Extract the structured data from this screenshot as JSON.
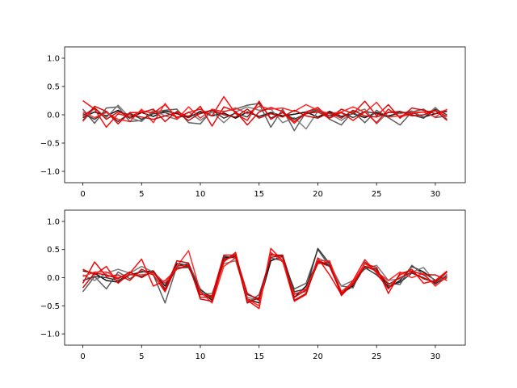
{
  "chart_data": [
    {
      "type": "line",
      "title": "",
      "xlabel": "",
      "ylabel": "",
      "xlim": [
        -1.55,
        32.55
      ],
      "ylim": [
        -1.2,
        1.2
      ],
      "xticks": [
        0,
        5,
        10,
        15,
        20,
        25,
        30
      ],
      "yticks": [
        -1.0,
        -0.5,
        0.0,
        0.5,
        1.0
      ],
      "xtick_labels": [
        "0",
        "5",
        "10",
        "15",
        "20",
        "25",
        "30"
      ],
      "ytick_labels": [
        "−1.0",
        "−0.5",
        "0.0",
        "0.5",
        "1.0"
      ],
      "grid": false,
      "legend": "none",
      "x": [
        0,
        1,
        2,
        3,
        4,
        5,
        6,
        7,
        8,
        9,
        10,
        11,
        12,
        13,
        14,
        15,
        16,
        17,
        18,
        19,
        20,
        21,
        22,
        23,
        24,
        25,
        26,
        27,
        28,
        29,
        30,
        31
      ],
      "series": [
        {
          "color": "#000000",
          "values": [
            -0.05,
            0.05,
            -0.02,
            0.08,
            -0.06,
            0.04,
            -0.03,
            0.07,
            0.02,
            -0.05,
            0.06,
            -0.02,
            0.03,
            -0.06,
            0.05,
            -0.03,
            0.04,
            -0.02,
            0.01,
            0.05,
            -0.04,
            0.06,
            -0.03,
            0.02,
            -0.05,
            0.04,
            -0.02,
            0.03,
            0.05,
            -0.04,
            0.02,
            0.06
          ]
        },
        {
          "color": "#555555",
          "values": [
            0.1,
            -0.15,
            0.12,
            0.14,
            -0.12,
            -0.1,
            0.05,
            0.08,
            0.1,
            -0.14,
            -0.16,
            0.08,
            0.06,
            0.1,
            0.17,
            0.2,
            -0.22,
            0.1,
            -0.28,
            0.05,
            0.1,
            -0.08,
            -0.18,
            0.06,
            -0.14,
            0.08,
            -0.05,
            -0.18,
            0.05,
            0.1,
            -0.05,
            -0.02
          ]
        },
        {
          "color": "#777777",
          "values": [
            -0.12,
            0.12,
            -0.05,
            0.17,
            -0.05,
            -0.12,
            0.08,
            -0.02,
            -0.08,
            0.05,
            -0.1,
            0.05,
            -0.14,
            0.05,
            0.14,
            0.08,
            0.1,
            -0.14,
            -0.05,
            -0.25,
            0.06,
            0.02,
            -0.1,
            0.04,
            0.1,
            -0.16,
            0.05,
            0.02,
            0.07,
            -0.05,
            0.13,
            -0.08
          ]
        },
        {
          "color": "#333333",
          "values": [
            0.02,
            -0.08,
            0.06,
            -0.12,
            0.03,
            -0.08,
            0.02,
            0.04,
            -0.04,
            -0.02,
            0.02,
            0.08,
            -0.06,
            0.03,
            -0.04,
            0.22,
            -0.06,
            0.04,
            -0.08,
            0.02,
            0.08,
            -0.02,
            0.04,
            -0.05,
            0.06,
            0.02,
            -0.04,
            0.06,
            0.0,
            -0.06,
            0.1,
            0.0
          ]
        },
        {
          "color": "#ff0000",
          "values": [
            0.25,
            0.1,
            -0.22,
            0.02,
            -0.04,
            0.07,
            0.03,
            0.18,
            -0.05,
            0.04,
            0.1,
            -0.02,
            0.32,
            0.02,
            -0.1,
            0.24,
            -0.08,
            0.04,
            -0.15,
            0.05,
            0.13,
            -0.06,
            0.04,
            -0.1,
            0.05,
            -0.14,
            0.1,
            -0.04,
            0.02,
            0.05,
            0.07,
            -0.03
          ]
        },
        {
          "color": "#e00000",
          "values": [
            -0.1,
            0.15,
            0.06,
            -0.16,
            0.04,
            0.04,
            0.1,
            -0.12,
            0.06,
            -0.04,
            0.15,
            -0.2,
            0.14,
            0.06,
            -0.18,
            0.05,
            0.13,
            0.06,
            -0.12,
            0.02,
            0.05,
            -0.06,
            0.1,
            0.02,
            0.24,
            -0.02,
            0.18,
            -0.06,
            0.12,
            0.08,
            0.02,
            0.09
          ]
        },
        {
          "color": "#ff2020",
          "values": [
            0.05,
            -0.05,
            0.04,
            -0.08,
            -0.12,
            0.1,
            -0.14,
            0.2,
            -0.08,
            0.14,
            -0.06,
            0.1,
            0.05,
            0.12,
            0.02,
            0.15,
            0.1,
            0.12,
            0.06,
            0.18,
            0.08,
            0.02,
            0.05,
            0.14,
            0.04,
            0.22,
            -0.04,
            -0.02,
            0.04,
            0.05,
            -0.04,
            0.1
          ]
        },
        {
          "color": "#cc0000",
          "values": [
            -0.02,
            0.12,
            -0.08,
            0.05,
            0.0,
            -0.04,
            -0.08,
            -0.02,
            0.04,
            -0.1,
            0.03,
            0.08,
            0.0,
            -0.04,
            0.1,
            -0.06,
            0.02,
            -0.04,
            0.08,
            -0.02,
            -0.06,
            0.04,
            -0.06,
            0.08,
            -0.02,
            -0.04,
            0.04,
            0.06,
            -0.02,
            0.0,
            0.08,
            -0.1
          ]
        }
      ]
    },
    {
      "type": "line",
      "title": "",
      "xlabel": "",
      "ylabel": "",
      "xlim": [
        -1.55,
        32.55
      ],
      "ylim": [
        -1.2,
        1.2
      ],
      "xticks": [
        0,
        5,
        10,
        15,
        20,
        25,
        30
      ],
      "yticks": [
        -1.0,
        -0.5,
        0.0,
        0.5,
        1.0
      ],
      "xtick_labels": [
        "0",
        "5",
        "10",
        "15",
        "20",
        "25",
        "30"
      ],
      "ytick_labels": [
        "−1.0",
        "−0.5",
        "0.0",
        "0.5",
        "1.0"
      ],
      "grid": false,
      "legend": "none",
      "x": [
        0,
        1,
        2,
        3,
        4,
        5,
        6,
        7,
        8,
        9,
        10,
        11,
        12,
        13,
        14,
        15,
        16,
        17,
        18,
        19,
        20,
        21,
        22,
        23,
        24,
        25,
        26,
        27,
        28,
        29,
        30,
        31
      ],
      "series": [
        {
          "color": "#000000",
          "values": [
            0.12,
            0.08,
            -0.05,
            -0.08,
            0.05,
            0.1,
            0.12,
            -0.15,
            0.25,
            0.22,
            -0.25,
            -0.4,
            0.35,
            0.38,
            -0.38,
            -0.45,
            0.3,
            0.38,
            -0.35,
            -0.15,
            0.3,
            0.22,
            -0.28,
            -0.15,
            0.2,
            0.15,
            -0.18,
            -0.05,
            0.2,
            0.1,
            -0.05,
            0.02
          ]
        },
        {
          "color": "#555555",
          "values": [
            -0.25,
            0.02,
            -0.2,
            0.1,
            -0.02,
            0.12,
            0.05,
            -0.45,
            0.2,
            0.25,
            -0.2,
            -0.38,
            0.3,
            0.42,
            -0.45,
            -0.3,
            0.35,
            0.3,
            -0.2,
            -0.1,
            0.5,
            0.2,
            -0.15,
            -0.18,
            0.28,
            0.1,
            -0.1,
            -0.12,
            0.22,
            0.05,
            -0.12,
            0.06
          ]
        },
        {
          "color": "#777777",
          "values": [
            0.05,
            -0.05,
            0.08,
            0.15,
            0.08,
            0.2,
            0.1,
            -0.1,
            0.15,
            0.2,
            -0.3,
            -0.28,
            0.25,
            0.3,
            -0.35,
            -0.4,
            0.42,
            0.35,
            -0.28,
            -0.25,
            0.35,
            0.25,
            -0.15,
            -0.05,
            0.15,
            0.22,
            -0.05,
            -0.02,
            0.1,
            0.18,
            -0.08,
            0.05
          ]
        },
        {
          "color": "#333333",
          "values": [
            -0.05,
            0.02,
            0.0,
            -0.05,
            0.06,
            0.02,
            0.1,
            -0.2,
            0.18,
            0.18,
            -0.22,
            -0.35,
            0.38,
            0.35,
            -0.3,
            -0.38,
            0.4,
            0.4,
            -0.25,
            -0.2,
            0.52,
            0.25,
            -0.25,
            -0.08,
            0.18,
            0.05,
            -0.15,
            -0.08,
            0.08,
            0.0,
            -0.1,
            0.0
          ]
        },
        {
          "color": "#ff0000",
          "values": [
            0.15,
            0.05,
            0.2,
            -0.1,
            0.08,
            0.33,
            -0.15,
            -0.05,
            0.15,
            0.22,
            -0.35,
            -0.35,
            0.28,
            0.45,
            -0.4,
            -0.55,
            0.52,
            0.3,
            -0.42,
            -0.3,
            0.35,
            0.05,
            -0.3,
            -0.05,
            0.32,
            0.08,
            -0.2,
            0.05,
            0.15,
            -0.1,
            -0.05,
            0.12
          ]
        },
        {
          "color": "#e00000",
          "values": [
            -0.1,
            0.28,
            0.02,
            0.05,
            -0.05,
            0.15,
            0.05,
            -0.25,
            0.22,
            0.2,
            -0.3,
            -0.32,
            0.4,
            0.4,
            -0.28,
            -0.4,
            0.42,
            0.38,
            -0.35,
            -0.22,
            0.25,
            0.28,
            -0.32,
            -0.1,
            0.25,
            0.18,
            -0.28,
            0.08,
            0.12,
            0.05,
            0.05,
            -0.05
          ]
        },
        {
          "color": "#ff2020",
          "values": [
            0.02,
            0.1,
            0.1,
            0.0,
            0.05,
            0.05,
            0.08,
            -0.1,
            0.2,
            0.48,
            -0.25,
            -0.45,
            0.2,
            0.35,
            -0.38,
            -0.5,
            0.45,
            0.28,
            -0.3,
            -0.2,
            0.3,
            0.3,
            -0.25,
            -0.08,
            0.25,
            0.1,
            -0.05,
            0.1,
            0.0,
            0.08,
            -0.15,
            0.02
          ]
        },
        {
          "color": "#cc0000",
          "values": [
            -0.18,
            0.08,
            0.05,
            -0.02,
            0.1,
            0.0,
            0.12,
            -0.22,
            0.3,
            0.26,
            -0.38,
            -0.42,
            0.32,
            0.38,
            -0.45,
            -0.35,
            0.36,
            0.4,
            -0.4,
            -0.28,
            0.28,
            0.2,
            -0.28,
            -0.12,
            0.2,
            0.12,
            -0.12,
            0.0,
            0.1,
            -0.02,
            -0.08,
            0.1
          ]
        }
      ]
    }
  ]
}
